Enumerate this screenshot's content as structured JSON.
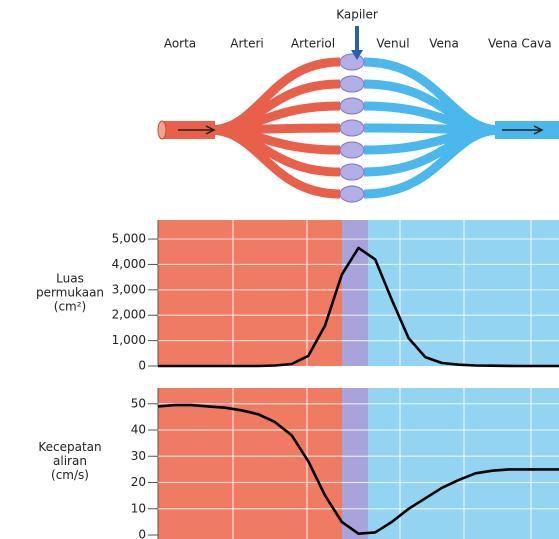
{
  "diagram": {
    "labels": [
      "Kapiler",
      "Aorta",
      "Arteri",
      "Arteriol",
      "Venul",
      "Vena",
      "Vena Cava"
    ]
  },
  "chart_data": [
    {
      "type": "line",
      "ylabel": [
        "Luas",
        "permukaan",
        "(cm²)"
      ],
      "categories": [
        null,
        null,
        null,
        null,
        null,
        null,
        null,
        null,
        null,
        null,
        null,
        null,
        null,
        null,
        null,
        null,
        null,
        null,
        null,
        null,
        null,
        null,
        null,
        null,
        null
      ],
      "series": [
        {
          "color": "#000000",
          "values": [
            0,
            0,
            0,
            0,
            0,
            0,
            0,
            20,
            80,
            400,
            1600,
            3600,
            4650,
            4200,
            2600,
            1100,
            350,
            120,
            50,
            20,
            10,
            5,
            0,
            0,
            0
          ]
        }
      ],
      "ylim": [
        0,
        5750
      ],
      "yticks": [
        0,
        {
          "value": 1000,
          "label": "1,000"
        },
        {
          "value": 2000,
          "label": "2,000"
        },
        {
          "value": 3000,
          "label": "3,000"
        },
        {
          "value": 4000,
          "label": "4,000"
        },
        {
          "value": 5000,
          "label": "5,000"
        }
      ],
      "grid": true
    },
    {
      "type": "line",
      "ylabel": [
        "Kecepatan",
        "aliran",
        "(cm/s)"
      ],
      "categories": [
        null,
        null,
        null,
        null,
        null,
        null,
        null,
        null,
        null,
        null,
        null,
        null,
        null,
        null,
        null,
        null,
        null,
        null,
        null,
        null,
        null,
        null,
        null,
        null,
        null
      ],
      "series": [
        {
          "color": "#000000",
          "values": [
            49,
            49.5,
            49.5,
            49,
            48.5,
            47.5,
            46,
            43,
            38,
            28,
            15,
            5,
            0.5,
            1,
            5,
            10,
            14,
            18,
            21,
            23.5,
            24.5,
            25,
            25,
            25,
            25
          ]
        }
      ],
      "ylim": [
        0,
        56
      ],
      "yticks": [
        0,
        10,
        20,
        30,
        40,
        50
      ],
      "grid": true
    }
  ]
}
